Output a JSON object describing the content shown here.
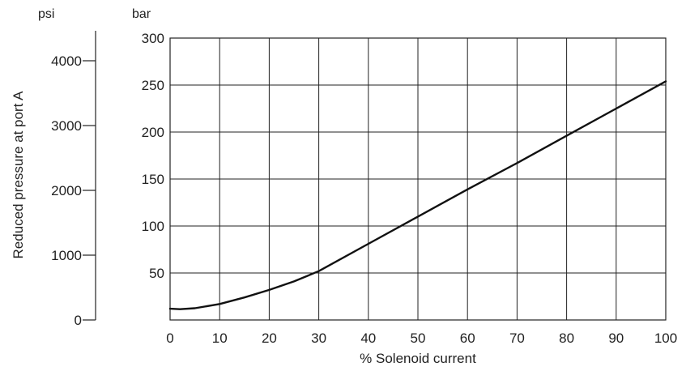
{
  "chart_data": {
    "type": "line",
    "title": "",
    "xlabel": "% Solenoid current",
    "ylabel": "Reduced pressure at port A",
    "y_unit_primary": "bar",
    "y_unit_secondary": "psi",
    "xlim": [
      0,
      100
    ],
    "ylim": [
      0,
      300
    ],
    "y2lim": [
      0,
      4350
    ],
    "x_ticks": [
      0,
      10,
      20,
      30,
      40,
      50,
      60,
      70,
      80,
      90,
      100
    ],
    "y_ticks": [
      50,
      100,
      150,
      200,
      250,
      300
    ],
    "y2_ticks": [
      0,
      1000,
      2000,
      3000,
      4000
    ],
    "grid": true,
    "series": [
      {
        "x": [
          0,
          2,
          5,
          10,
          15,
          20,
          25,
          30,
          40,
          50,
          60,
          70,
          80,
          90,
          100
        ],
        "values": [
          12,
          11.5,
          12.5,
          17,
          24,
          32,
          41,
          52,
          81,
          110,
          139,
          167,
          196,
          225,
          254
        ]
      }
    ]
  }
}
